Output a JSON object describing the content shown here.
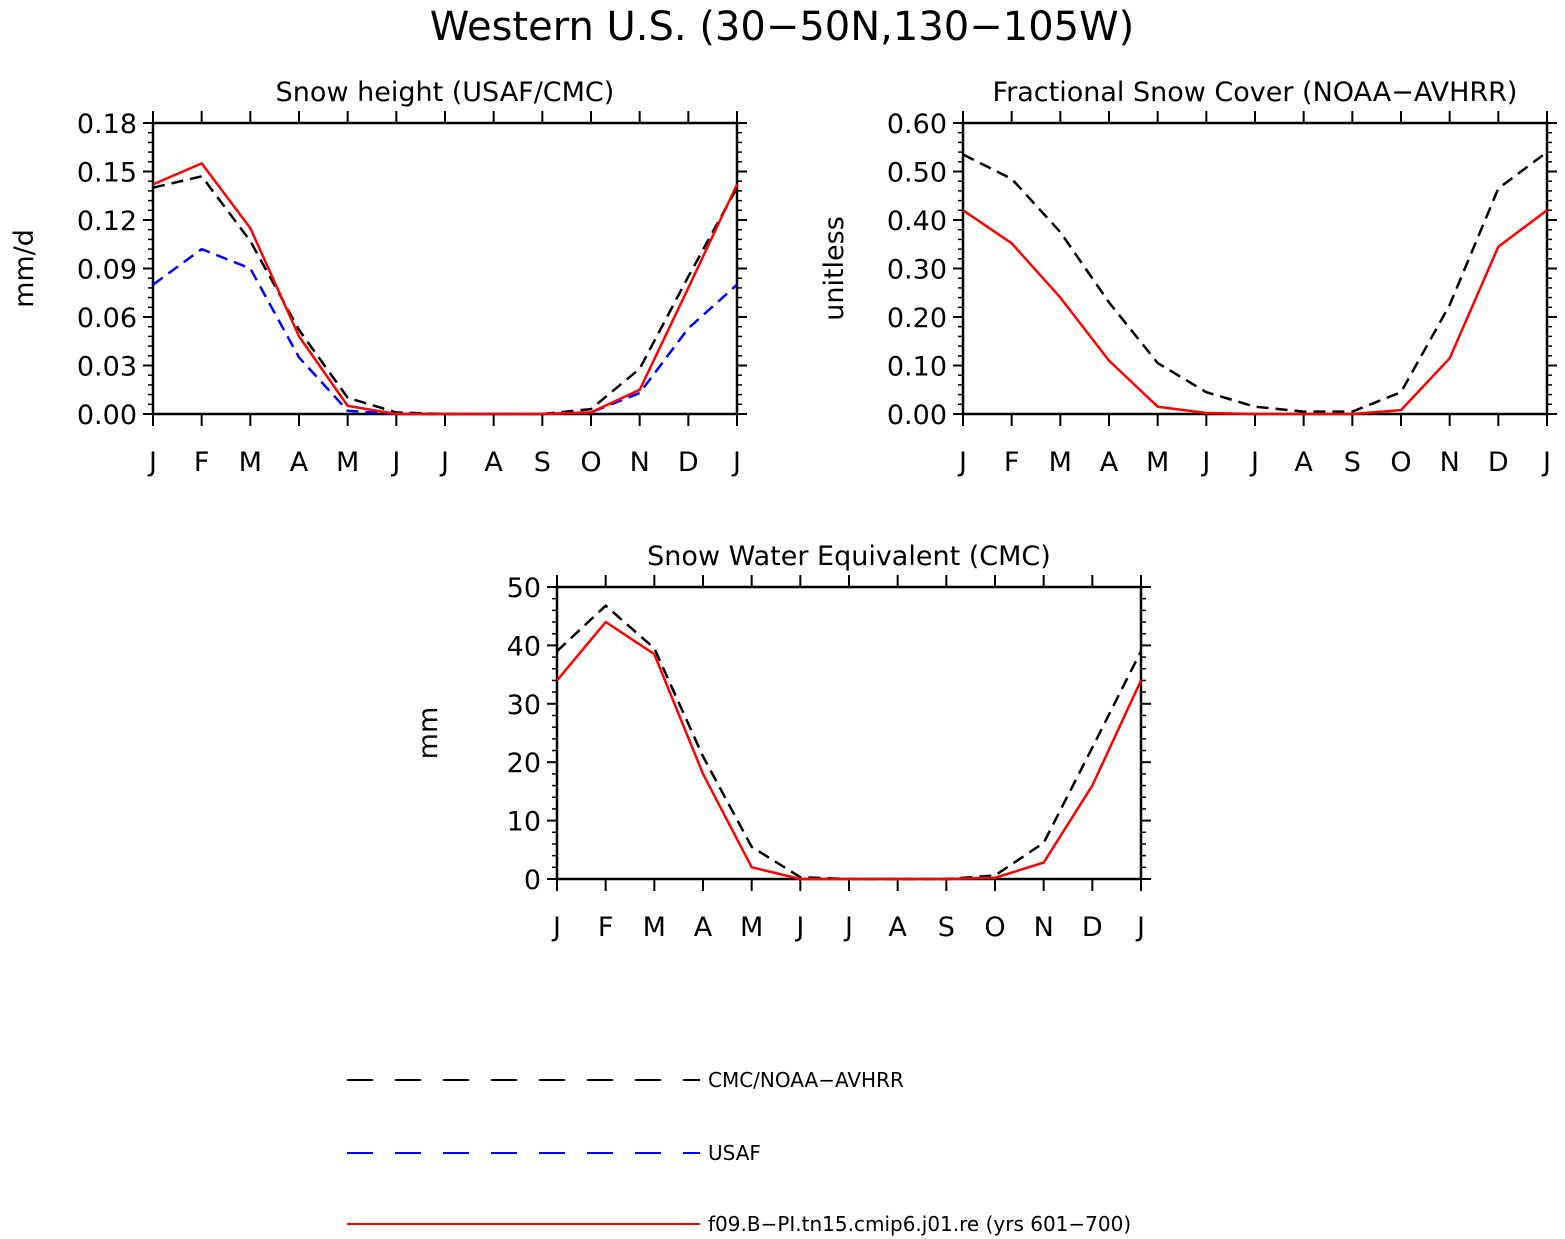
{
  "figure": {
    "title": "Western U.S. (30−50N,130−105W)"
  },
  "legend": [
    {
      "label": "CMC/NOAA−AVHRR",
      "color": "#000000",
      "dash": "dashed"
    },
    {
      "label": "USAF",
      "color": "#0000ff",
      "dash": "dashed"
    },
    {
      "label": "f09.B−PI.tn15.cmip6.j01.re (yrs 601−700)",
      "color": "#ff0000",
      "dash": "solid"
    }
  ],
  "chart_data": [
    {
      "type": "line",
      "title": "Snow height (USAF/CMC)",
      "ylabel": "mm/d",
      "xlabel": "",
      "categories": [
        "J",
        "F",
        "M",
        "A",
        "M",
        "J",
        "J",
        "A",
        "S",
        "O",
        "N",
        "D",
        "J"
      ],
      "ylim": [
        0,
        0.18
      ],
      "yticks": [
        "0.00",
        "0.03",
        "0.06",
        "0.09",
        "0.12",
        "0.15",
        "0.18"
      ],
      "series": [
        {
          "name": "CMC/NOAA−AVHRR",
          "color": "#000000",
          "dash": "dashed",
          "values": [
            0.14,
            0.147,
            0.107,
            0.052,
            0.01,
            0.001,
            0.0,
            0.0,
            0.0,
            0.003,
            0.028,
            0.085,
            0.14
          ]
        },
        {
          "name": "USAF",
          "color": "#0000ff",
          "dash": "dashed",
          "values": [
            0.08,
            0.102,
            0.09,
            0.035,
            0.002,
            0.0,
            0.0,
            0.0,
            0.0,
            0.001,
            0.013,
            0.053,
            0.08
          ]
        },
        {
          "name": "f09.B−PI.tn15.cmip6.j01.re (yrs 601−700)",
          "color": "#ff0000",
          "dash": "solid",
          "values": [
            0.142,
            0.155,
            0.115,
            0.048,
            0.005,
            0.0,
            0.0,
            0.0,
            0.0,
            0.001,
            0.015,
            0.078,
            0.142
          ]
        }
      ]
    },
    {
      "type": "line",
      "title": "Fractional Snow Cover (NOAA−AVHRR)",
      "ylabel": "unitless",
      "xlabel": "",
      "categories": [
        "J",
        "F",
        "M",
        "A",
        "M",
        "J",
        "J",
        "A",
        "S",
        "O",
        "N",
        "D",
        "J"
      ],
      "ylim": [
        0,
        0.6
      ],
      "yticks": [
        "0.00",
        "0.10",
        "0.20",
        "0.30",
        "0.40",
        "0.50",
        "0.60"
      ],
      "series": [
        {
          "name": "CMC/NOAA−AVHRR",
          "color": "#000000",
          "dash": "dashed",
          "values": [
            0.535,
            0.485,
            0.375,
            0.23,
            0.105,
            0.045,
            0.015,
            0.005,
            0.005,
            0.045,
            0.225,
            0.465,
            0.54
          ]
        },
        {
          "name": "f09.B−PI.tn15.cmip6.j01.re (yrs 601−700)",
          "color": "#ff0000",
          "dash": "solid",
          "values": [
            0.42,
            0.352,
            0.24,
            0.11,
            0.015,
            0.002,
            0.0,
            0.0,
            0.0,
            0.008,
            0.115,
            0.345,
            0.42
          ]
        }
      ]
    },
    {
      "type": "line",
      "title": "Snow Water Equivalent (CMC)",
      "ylabel": "mm",
      "xlabel": "",
      "categories": [
        "J",
        "F",
        "M",
        "A",
        "M",
        "J",
        "J",
        "A",
        "S",
        "O",
        "N",
        "D",
        "J"
      ],
      "ylim": [
        0,
        50
      ],
      "yticks": [
        "0",
        "10",
        "20",
        "30",
        "40",
        "50"
      ],
      "series": [
        {
          "name": "CMC/NOAA−AVHRR",
          "color": "#000000",
          "dash": "dashed",
          "values": [
            39.0,
            46.8,
            39.5,
            21.0,
            5.5,
            0.3,
            0.0,
            0.0,
            0.0,
            0.6,
            6.2,
            22.5,
            39.0
          ]
        },
        {
          "name": "f09.B−PI.tn15.cmip6.j01.re (yrs 601−700)",
          "color": "#ff0000",
          "dash": "solid",
          "values": [
            34.0,
            44.0,
            38.5,
            18.0,
            2.0,
            0.0,
            0.0,
            0.0,
            0.0,
            0.2,
            2.8,
            16.0,
            34.0
          ]
        }
      ]
    }
  ]
}
